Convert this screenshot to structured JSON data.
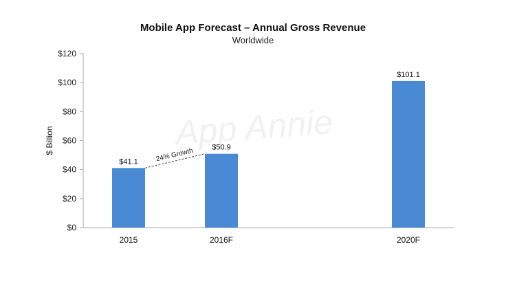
{
  "chart_data": {
    "type": "bar",
    "title": "Mobile App Forecast – Annual Gross Revenue",
    "subtitle": "Worldwide",
    "ylabel": "$ Billion",
    "xlabel": "",
    "categories": [
      "2015",
      "2016F",
      "2020F"
    ],
    "values": [
      41.1,
      50.9,
      101.1
    ],
    "value_labels": [
      "$41.1",
      "$50.9",
      "$101.1"
    ],
    "ylim": [
      0,
      120
    ],
    "yticks": [
      0,
      20,
      40,
      60,
      80,
      100,
      120
    ],
    "ytick_labels": [
      "$0",
      "$20",
      "$40",
      "$60",
      "$80",
      "$100",
      "$120"
    ],
    "annotation": {
      "text": "24% Growth",
      "from": "2015",
      "to": "2016F"
    },
    "watermark": "App Annie",
    "bar_color": "#4a89d3",
    "grid": false,
    "legend": "none"
  }
}
